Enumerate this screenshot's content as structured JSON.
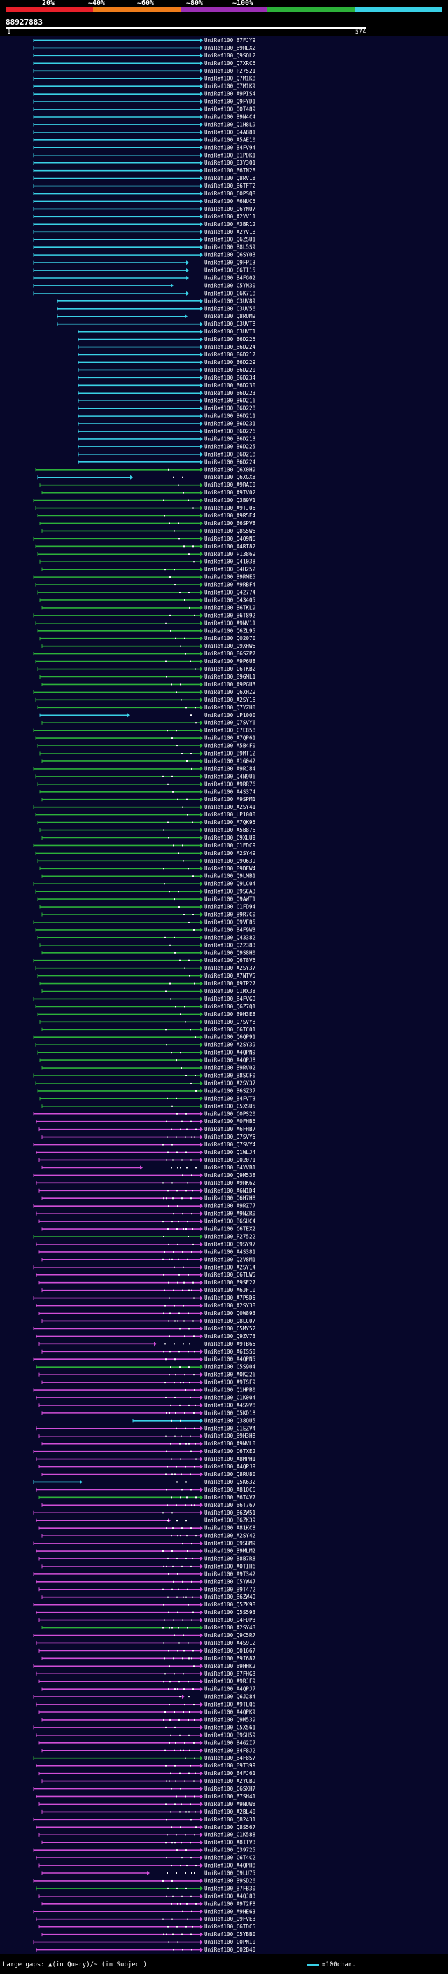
{
  "legend": {
    "labels": [
      "20%",
      "~40%",
      "~60%",
      "~80%",
      "~100%"
    ],
    "colors": [
      "#e8202a",
      "#ef7d1b",
      "#9c2fb4",
      "#2db13a",
      "#3ad0e6"
    ]
  },
  "query": {
    "id": "88927883",
    "start": "1",
    "end": "574"
  },
  "hits": [
    "UniRef100_B7FJY9",
    "UniRef100_B9RLX2",
    "UniRef100_Q9SQL2",
    "UniRef100_Q7XRC6",
    "UniRef100_P27521",
    "UniRef100_Q7M1K8",
    "UniRef100_Q7M1K9",
    "UniRef100_A9PIS4",
    "UniRef100_Q9FYD1",
    "UniRef100_Q0T489",
    "UniRef100_B9N4C4",
    "UniRef100_Q1H8L9",
    "UniRef100_Q4A881",
    "UniRef100_A5AE10",
    "UniRef100_B4FV94",
    "UniRef100_B1PDK1",
    "UniRef100_B3Y3Q1",
    "UniRef100_B6TN28",
    "UniRef100_Q8RV18",
    "UniRef100_B6TFT2",
    "UniRef100_C0PSQ8",
    "UniRef100_A6NUC5",
    "UniRef100_Q6YNU7",
    "UniRef100_A2YV11",
    "UniRef100_A3BR12",
    "UniRef100_A2YV18",
    "UniRef100_Q6ZSU1",
    "UniRef100_B8L5S9",
    "UniRef100_Q6SY03",
    "UniRef100_Q9FPI3",
    "UniRef100_C6TI15",
    "UniRef100_B4FG02",
    "UniRef100_C5YN30",
    "UniRef100_C6K718",
    "UniRef100_C3UV89",
    "UniRef100_C3UV56",
    "UniRef100_Q8RUM9",
    "UniRef100_C3UVT8",
    "UniRef100_C3UVT1",
    "UniRef100_B6D225",
    "UniRef100_B6D224",
    "UniRef100_B6D217",
    "UniRef100_B6D229",
    "UniRef100_B6D220",
    "UniRef100_B6D234",
    "UniRef100_B6D230",
    "UniRef100_B6D223",
    "UniRef100_B6D216",
    "UniRef100_B6D228",
    "UniRef100_B6D211",
    "UniRef100_B6D231",
    "UniRef100_B6D226",
    "UniRef100_B6D213",
    "UniRef100_B6D225",
    "UniRef100_B6D218",
    "UniRef100_B6D224",
    "UniRef100_Q6X0H9",
    "UniRef100_Q6XGX8",
    "UniRef100_A9RAI0",
    "UniRef100_A9TV02",
    "UniRef100_Q3B9V1",
    "UniRef100_A9TJ06",
    "UniRef100_A9R5E4",
    "UniRef100_B6SPV8",
    "UniRef100_Q8S5W6",
    "UniRef100_Q4Q9N6",
    "UniRef100_A4RT82",
    "UniRef100_P13869",
    "UniRef100_Q41038",
    "UniRef100_Q4H252",
    "UniRef100_B9RME5",
    "UniRef100_A9RBF4",
    "UniRef100_Q42774",
    "UniRef100_Q43405",
    "UniRef100_B6TKL9",
    "UniRef100_B6T892",
    "UniRef100_A9NV11",
    "UniRef100_Q6ZL95",
    "UniRef100_Q02070",
    "UniRef100_Q9XHW6",
    "UniRef100_B6SZP7",
    "UniRef100_A9P6U8",
    "UniRef100_C6TKB2",
    "UniRef100_B9GML1",
    "UniRef100_A9PGU3",
    "UniRef100_Q6XHZ9",
    "UniRef100_A2SY16",
    "UniRef100_Q7YZH0",
    "UniRef100_UP1000",
    "UniRef100_Q7SVY6",
    "UniRef100_C7E858",
    "UniRef100_A7QP61",
    "UniRef100_A5B4F0",
    "UniRef100_B9MT12",
    "UniRef100_A1G042",
    "UniRef100_A9RJ84",
    "UniRef100_Q4N9U6",
    "UniRef100_A9RR76",
    "UniRef100_A4S374",
    "UniRef100_A9SPM1",
    "UniRef100_A2SY41",
    "UniRef100_UP1000",
    "UniRef100_A7QK95",
    "UniRef100_A5B876",
    "UniRef100_C9XLU9",
    "UniRef100_C1EDC9",
    "UniRef100_A2SY49",
    "UniRef100_Q9Q639",
    "UniRef100_B9DFW4",
    "UniRef100_Q9LMB1",
    "UniRef100_Q9LC04",
    "UniRef100_B9SCA3",
    "UniRef100_Q9AWT1",
    "UniRef100_C1FD94",
    "UniRef100_B9R7C0",
    "UniRef100_Q9VF85",
    "UniRef100_B4F9W3",
    "UniRef100_Q43382",
    "UniRef100_Q22383",
    "UniRef100_Q9S8H0",
    "UniRef100_Q6T8V6",
    "UniRef100_A2SY37",
    "UniRef100_A7NTV5",
    "UniRef100_A9TP27",
    "UniRef100_C1MX38",
    "UniRef100_B4FVG9",
    "UniRef100_Q6Z7Q1",
    "UniRef100_B9H3E8",
    "UniRef100_Q7SVY8",
    "UniRef100_C6TC01",
    "UniRef100_Q6QP91",
    "UniRef100_A2SY39",
    "UniRef100_A4QPN9",
    "UniRef100_A4QPJ8",
    "UniRef100_B9RV02",
    "UniRef100_B8SCF0",
    "UniRef100_A2SY37",
    "UniRef100_B6SZ37",
    "UniRef100_B4FVT3",
    "UniRef100_C5XSU5",
    "UniRef100_C0PS20",
    "UniRef100_A0FHB6",
    "UniRef100_A6FHB7",
    "UniRef100_Q7SVY5",
    "UniRef100_Q7SVY4",
    "UniRef100_Q1WLJ4",
    "UniRef100_Q02071",
    "UniRef100_B4YVB1",
    "UniRef100_Q9M538",
    "UniRef100_A9RK62",
    "UniRef100_A6N1D4",
    "UniRef100_Q6H7H8",
    "UniRef100_A9RZ77",
    "UniRef100_A9NZR0",
    "UniRef100_B6SUC4",
    "UniRef100_C6TEX2",
    "UniRef100_P27522",
    "UniRef100_Q9SY97",
    "UniRef100_A4S381",
    "UniRef100_Q2V8M1",
    "UniRef100_A2SY14",
    "UniRef100_C6TLW5",
    "UniRef100_B9SE27",
    "UniRef100_A6JF10",
    "UniRef100_A7PSD5",
    "UniRef100_A2SY38",
    "UniRef100_Q0W893",
    "UniRef100_Q8LC07",
    "UniRef100_C5MY52",
    "UniRef100_Q9ZV73",
    "UniRef100_A9TB65",
    "UniRef100_A6ISS0",
    "UniRef100_A4QPN5",
    "UniRef100_C5S904",
    "UniRef100_A0K226",
    "UniRef100_A9TSF9",
    "UniRef100_Q1HPB0",
    "UniRef100_C1K004",
    "UniRef100_A4S9V8",
    "UniRef100_Q5KD18",
    "UniRef100_Q38QU5",
    "UniRef100_C1EZV4",
    "UniRef100_B9H3H8",
    "UniRef100_A9NVL0",
    "UniRef100_C6TXE2",
    "UniRef100_A8MPH1",
    "UniRef100_A4QPJ9",
    "UniRef100_Q8RU80",
    "UniRef100_Q5K632",
    "UniRef100_A81OC6",
    "UniRef100_B6T4V7",
    "UniRef100_B6T767",
    "UniRef100_B6ZW51",
    "UniRef100_B6ZK39",
    "UniRef100_A81KC8",
    "UniRef100_A2SY42",
    "UniRef100_Q9SBM9",
    "UniRef100_B9MLM2",
    "UniRef100_B8B7R8",
    "UniRef100_A0TIH6",
    "UniRef100_A9T342",
    "UniRef100_C5YW47",
    "UniRef100_B9T472",
    "UniRef100_B6ZW49",
    "UniRef100_Q5ZK98",
    "UniRef100_Q5S593",
    "UniRef100_Q4FDP3",
    "UniRef100_A2SY43",
    "UniRef100_Q9C5R7",
    "UniRef100_A4S912",
    "UniRef100_Q01667",
    "UniRef100_B9I687",
    "UniRef100_B9HHK2",
    "UniRef100_B7FHG3",
    "UniRef100_A9RJF9",
    "UniRef100_A4QPJ7",
    "UniRef100_Q6J284",
    "UniRef100_A9TLQ6",
    "UniRef100_A4QPK9",
    "UniRef100_Q9M539",
    "UniRef100_C5X561",
    "UniRef100_B9SH59",
    "UniRef100_B4G2I7",
    "UniRef100_B4F8J2",
    "UniRef100_B4F8S7",
    "UniRef100_B9T399",
    "UniRef100_B4FJ61",
    "UniRef100_A2YCB9",
    "UniRef100_C6SXH7",
    "UniRef100_B7SH41",
    "UniRef100_A9NUW8",
    "UniRef100_A2BL40",
    "UniRef100_Q82431",
    "UniRef100_Q8S567",
    "UniRef100_C1K588",
    "UniRef100_A8ITV3",
    "UniRef100_Q39725",
    "UniRef100_C6T4C2",
    "UniRef100_A4QPH8",
    "UniRef100_Q9LU75",
    "UniRef100_B9SD26",
    "UniRef100_B7FB30",
    "UniRef100_A4QJ83",
    "UniRef100_A9T2F8",
    "UniRef100_A9HE63",
    "UniRef100_Q9FVE3",
    "UniRef100_C6TDC5",
    "UniRef100_C5YBB0",
    "UniRef100_C0PNI0",
    "UniRef100_Q02B40"
  ],
  "footer": {
    "large_gaps": "Large gaps: ▲(in Query)/~ (in Subject)",
    "scale": "=100char."
  }
}
